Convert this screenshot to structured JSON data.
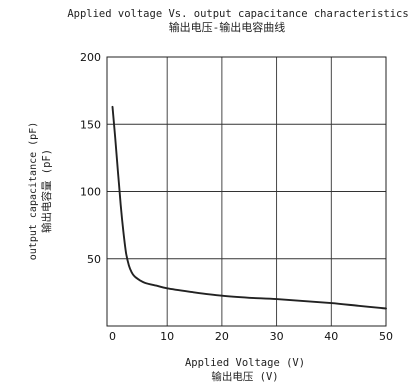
{
  "chart_data": {
    "type": "line",
    "title": "Applied voltage Vs. output capacitance characteristics",
    "subtitle": "输出电压-输出电容曲线",
    "xlabel": "Applied Voltage (V)",
    "xlabel_cn": "输出电压 (V)",
    "ylabel": "output capacitance (pF)",
    "ylabel_cn": "输出电容量 (pF)",
    "xlim": [
      -1,
      50
    ],
    "ylim": [
      0,
      200
    ],
    "x_ticks": [
      0,
      10,
      20,
      30,
      40,
      50
    ],
    "y_ticks": [
      50,
      100,
      150,
      200
    ],
    "grid": true,
    "series": [
      {
        "color": "#222222",
        "x": [
          0,
          0.5,
          1,
          1.5,
          2,
          2.5,
          3,
          3.5,
          4,
          5,
          6,
          8,
          10,
          15,
          20,
          25,
          30,
          35,
          40,
          45,
          50
        ],
        "y": [
          163,
          140,
          115,
          90,
          70,
          54,
          45,
          40,
          37,
          34,
          32,
          30,
          28,
          25,
          22.5,
          21,
          20,
          18.5,
          17,
          15,
          13
        ]
      }
    ]
  }
}
